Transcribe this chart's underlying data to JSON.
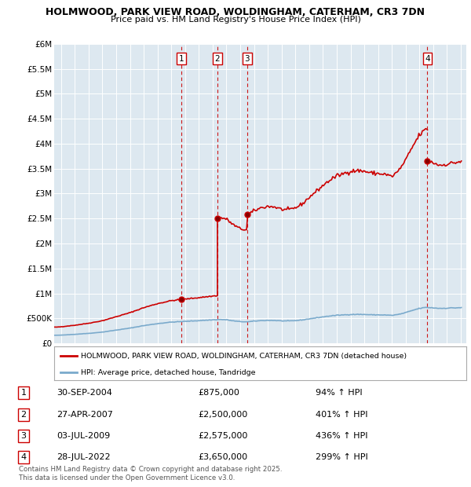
{
  "title": "HOLMWOOD, PARK VIEW ROAD, WOLDINGHAM, CATERHAM, CR3 7DN",
  "subtitle": "Price paid vs. HM Land Registry's House Price Index (HPI)",
  "bg_color": "#dde8f0",
  "red_color": "#cc0000",
  "blue_color": "#7aaacc",
  "ylim": [
    0,
    6000000
  ],
  "yticks": [
    0,
    500000,
    1000000,
    1500000,
    2000000,
    2500000,
    3000000,
    3500000,
    4000000,
    4500000,
    5000000,
    5500000,
    6000000
  ],
  "ytick_labels": [
    "£0",
    "£500K",
    "£1M",
    "£1.5M",
    "£2M",
    "£2.5M",
    "£3M",
    "£3.5M",
    "£4M",
    "£4.5M",
    "£5M",
    "£5.5M",
    "£6M"
  ],
  "xlim_start": 1995.5,
  "xlim_end": 2025.4,
  "transactions": [
    {
      "num": 1,
      "year": 2004.75,
      "price": 875000
    },
    {
      "num": 2,
      "year": 2007.33,
      "price": 2500000
    },
    {
      "num": 3,
      "year": 2009.5,
      "price": 2575000
    },
    {
      "num": 4,
      "year": 2022.58,
      "price": 3650000
    }
  ],
  "legend_line1": "HOLMWOOD, PARK VIEW ROAD, WOLDINGHAM, CATERHAM, CR3 7DN (detached house)",
  "legend_line2": "HPI: Average price, detached house, Tandridge",
  "table_rows": [
    {
      "num": 1,
      "date": "30-SEP-2004",
      "price": "£875,000",
      "hpi": "94% ↑ HPI"
    },
    {
      "num": 2,
      "date": "27-APR-2007",
      "price": "£2,500,000",
      "hpi": "401% ↑ HPI"
    },
    {
      "num": 3,
      "date": "03-JUL-2009",
      "price": "£2,575,000",
      "hpi": "436% ↑ HPI"
    },
    {
      "num": 4,
      "date": "28-JUL-2022",
      "price": "£3,650,000",
      "hpi": "299% ↑ HPI"
    }
  ],
  "footer": "Contains HM Land Registry data © Crown copyright and database right 2025.\nThis data is licensed under the Open Government Licence v3.0."
}
